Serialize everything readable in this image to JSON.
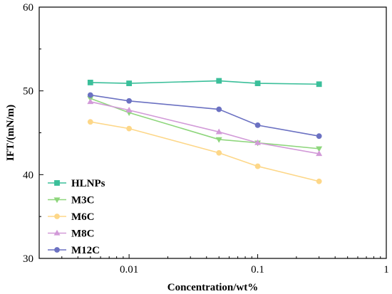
{
  "chart_data": {
    "type": "line",
    "xlabel": "Concentration/wt%",
    "ylabel": "IFT/(mN/m)",
    "xscale": "log",
    "xlim": [
      0.002,
      1
    ],
    "ylim": [
      30,
      60
    ],
    "xticks": [
      0.01,
      0.1,
      1
    ],
    "xtick_labels": [
      "0.01",
      "0.1",
      "1"
    ],
    "yticks": [
      30,
      40,
      50,
      60
    ],
    "ytick_labels": [
      "30",
      "40",
      "50",
      "60"
    ],
    "grid": false,
    "legend_position": "bottom-left",
    "x": [
      0.005,
      0.01,
      0.05,
      0.1,
      0.3
    ],
    "series": [
      {
        "name": "HLNPs",
        "marker": "square",
        "color": "#3bbf9a",
        "values": [
          51.0,
          50.9,
          51.2,
          50.9,
          50.8
        ]
      },
      {
        "name": "M3C",
        "marker": "triangle-down",
        "color": "#8ed67c",
        "values": [
          49.1,
          47.4,
          44.2,
          43.8,
          43.1
        ]
      },
      {
        "name": "M6C",
        "marker": "circle",
        "color": "#fdd788",
        "values": [
          46.3,
          45.5,
          42.6,
          41.0,
          39.2
        ]
      },
      {
        "name": "M8C",
        "marker": "triangle-up",
        "color": "#d29ad8",
        "values": [
          48.7,
          47.7,
          45.1,
          43.8,
          42.5
        ]
      },
      {
        "name": "M12C",
        "marker": "circle",
        "color": "#6b71c2",
        "values": [
          49.5,
          48.8,
          47.8,
          45.9,
          44.6
        ]
      }
    ]
  }
}
